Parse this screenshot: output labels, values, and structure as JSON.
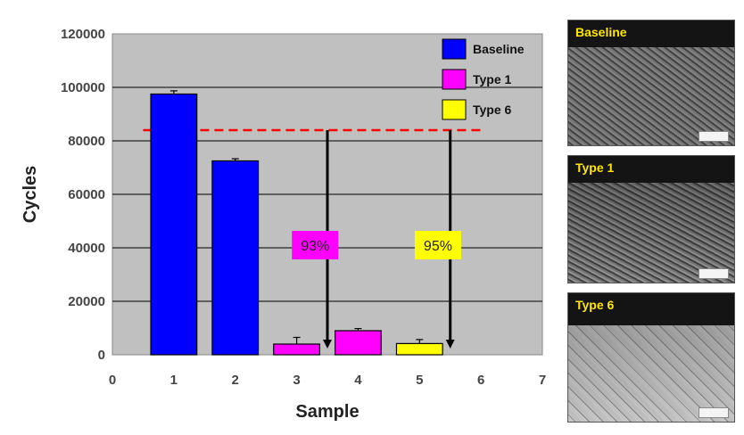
{
  "chart_data": {
    "type": "bar",
    "xlabel": "Sample",
    "ylabel": "Cycles",
    "xlim": [
      0,
      7
    ],
    "ylim": [
      0,
      120000
    ],
    "x_ticks": [
      "0",
      "1",
      "2",
      "3",
      "4",
      "5",
      "6",
      "7"
    ],
    "y_ticks": [
      "0",
      "20000",
      "40000",
      "60000",
      "80000",
      "100000",
      "120000"
    ],
    "grid": true,
    "legend_position": "top-right",
    "series": [
      {
        "name": "Baseline",
        "color": "#0000ff",
        "bars": [
          {
            "x": 1,
            "y": 97500,
            "err": 1200
          },
          {
            "x": 2,
            "y": 72500,
            "err": 800
          }
        ]
      },
      {
        "name": "Type 1",
        "color": "#ff00ff",
        "bars": [
          {
            "x": 3,
            "y": 4000,
            "err": 2500
          },
          {
            "x": 4,
            "y": 9000,
            "err": 800
          }
        ]
      },
      {
        "name": "Type 6",
        "color": "#ffff00",
        "bars": [
          {
            "x": 5,
            "y": 4200,
            "err": 1500
          }
        ]
      }
    ],
    "reference_line": {
      "y": 84000,
      "x_from": 0.5,
      "x_to": 6,
      "color": "#ff0000",
      "style": "dashed"
    },
    "arrows": [
      {
        "x": 3.5,
        "y_from": 84000,
        "y_to": 4000
      },
      {
        "x": 5.5,
        "y_from": 84000,
        "y_to": 4000
      }
    ],
    "annotations": [
      {
        "text": "93%",
        "x": 3.3,
        "y": 41000,
        "bg": "#ff00ff"
      },
      {
        "text": "95%",
        "x": 5.3,
        "y": 41000,
        "bg": "#ffff00"
      }
    ]
  },
  "micrographs": [
    {
      "label": "Baseline"
    },
    {
      "label": "Type 1"
    },
    {
      "label": "Type 6"
    }
  ]
}
